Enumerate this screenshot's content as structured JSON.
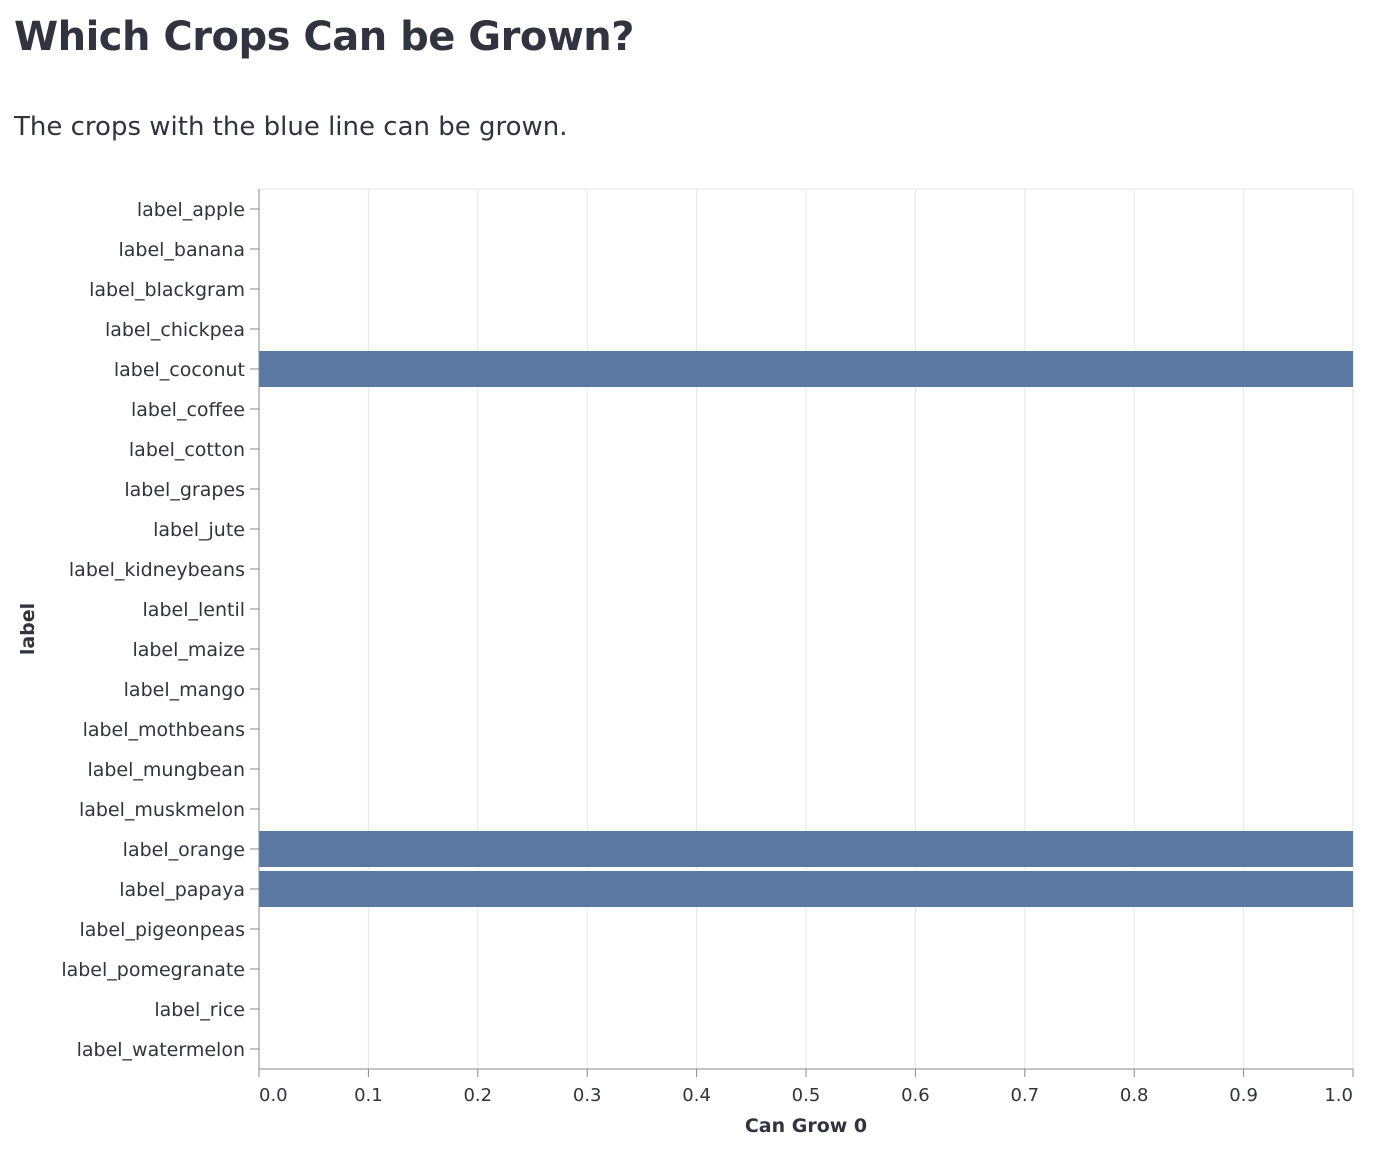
{
  "header": {
    "title": "Which Crops Can be Grown?",
    "subtitle": "The crops with the blue line can be grown."
  },
  "chart_data": {
    "type": "bar",
    "orientation": "horizontal",
    "categories": [
      "label_apple",
      "label_banana",
      "label_blackgram",
      "label_chickpea",
      "label_coconut",
      "label_coffee",
      "label_cotton",
      "label_grapes",
      "label_jute",
      "label_kidneybeans",
      "label_lentil",
      "label_maize",
      "label_mango",
      "label_mothbeans",
      "label_mungbean",
      "label_muskmelon",
      "label_orange",
      "label_papaya",
      "label_pigeonpeas",
      "label_pomegranate",
      "label_rice",
      "label_watermelon"
    ],
    "values": [
      0,
      0,
      0,
      0,
      1,
      0,
      0,
      0,
      0,
      0,
      0,
      0,
      0,
      0,
      0,
      0,
      1,
      1,
      0,
      0,
      0,
      0
    ],
    "xlabel": "Can Grow 0",
    "ylabel": "label",
    "xlim": [
      0,
      1
    ],
    "xticks": [
      "0.0",
      "0.1",
      "0.2",
      "0.3",
      "0.4",
      "0.5",
      "0.6",
      "0.7",
      "0.8",
      "0.9",
      "1.0"
    ],
    "grid": true,
    "bar_color": "#5b78a3",
    "grid_color": "#e6e6e9",
    "axis_color": "#888888"
  }
}
